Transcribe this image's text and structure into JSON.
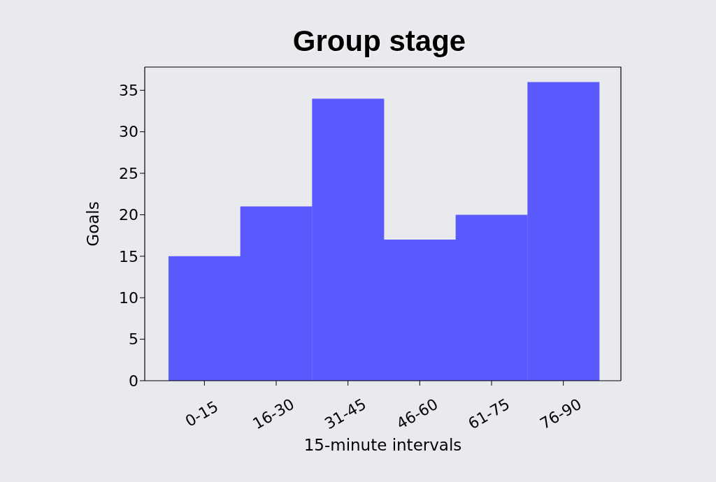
{
  "chart_data": {
    "type": "bar",
    "title": "Group stage",
    "xlabel": "15-minute intervals",
    "ylabel": "Goals",
    "categories": [
      "0-15",
      "16-30",
      "31-45",
      "46-60",
      "61-75",
      "76-90"
    ],
    "values": [
      15,
      21,
      34,
      17,
      20,
      36
    ],
    "color": "#5a5aff",
    "ylim": [
      0,
      37.8
    ],
    "yticks": [
      0,
      5,
      10,
      15,
      20,
      25,
      30,
      35
    ]
  }
}
